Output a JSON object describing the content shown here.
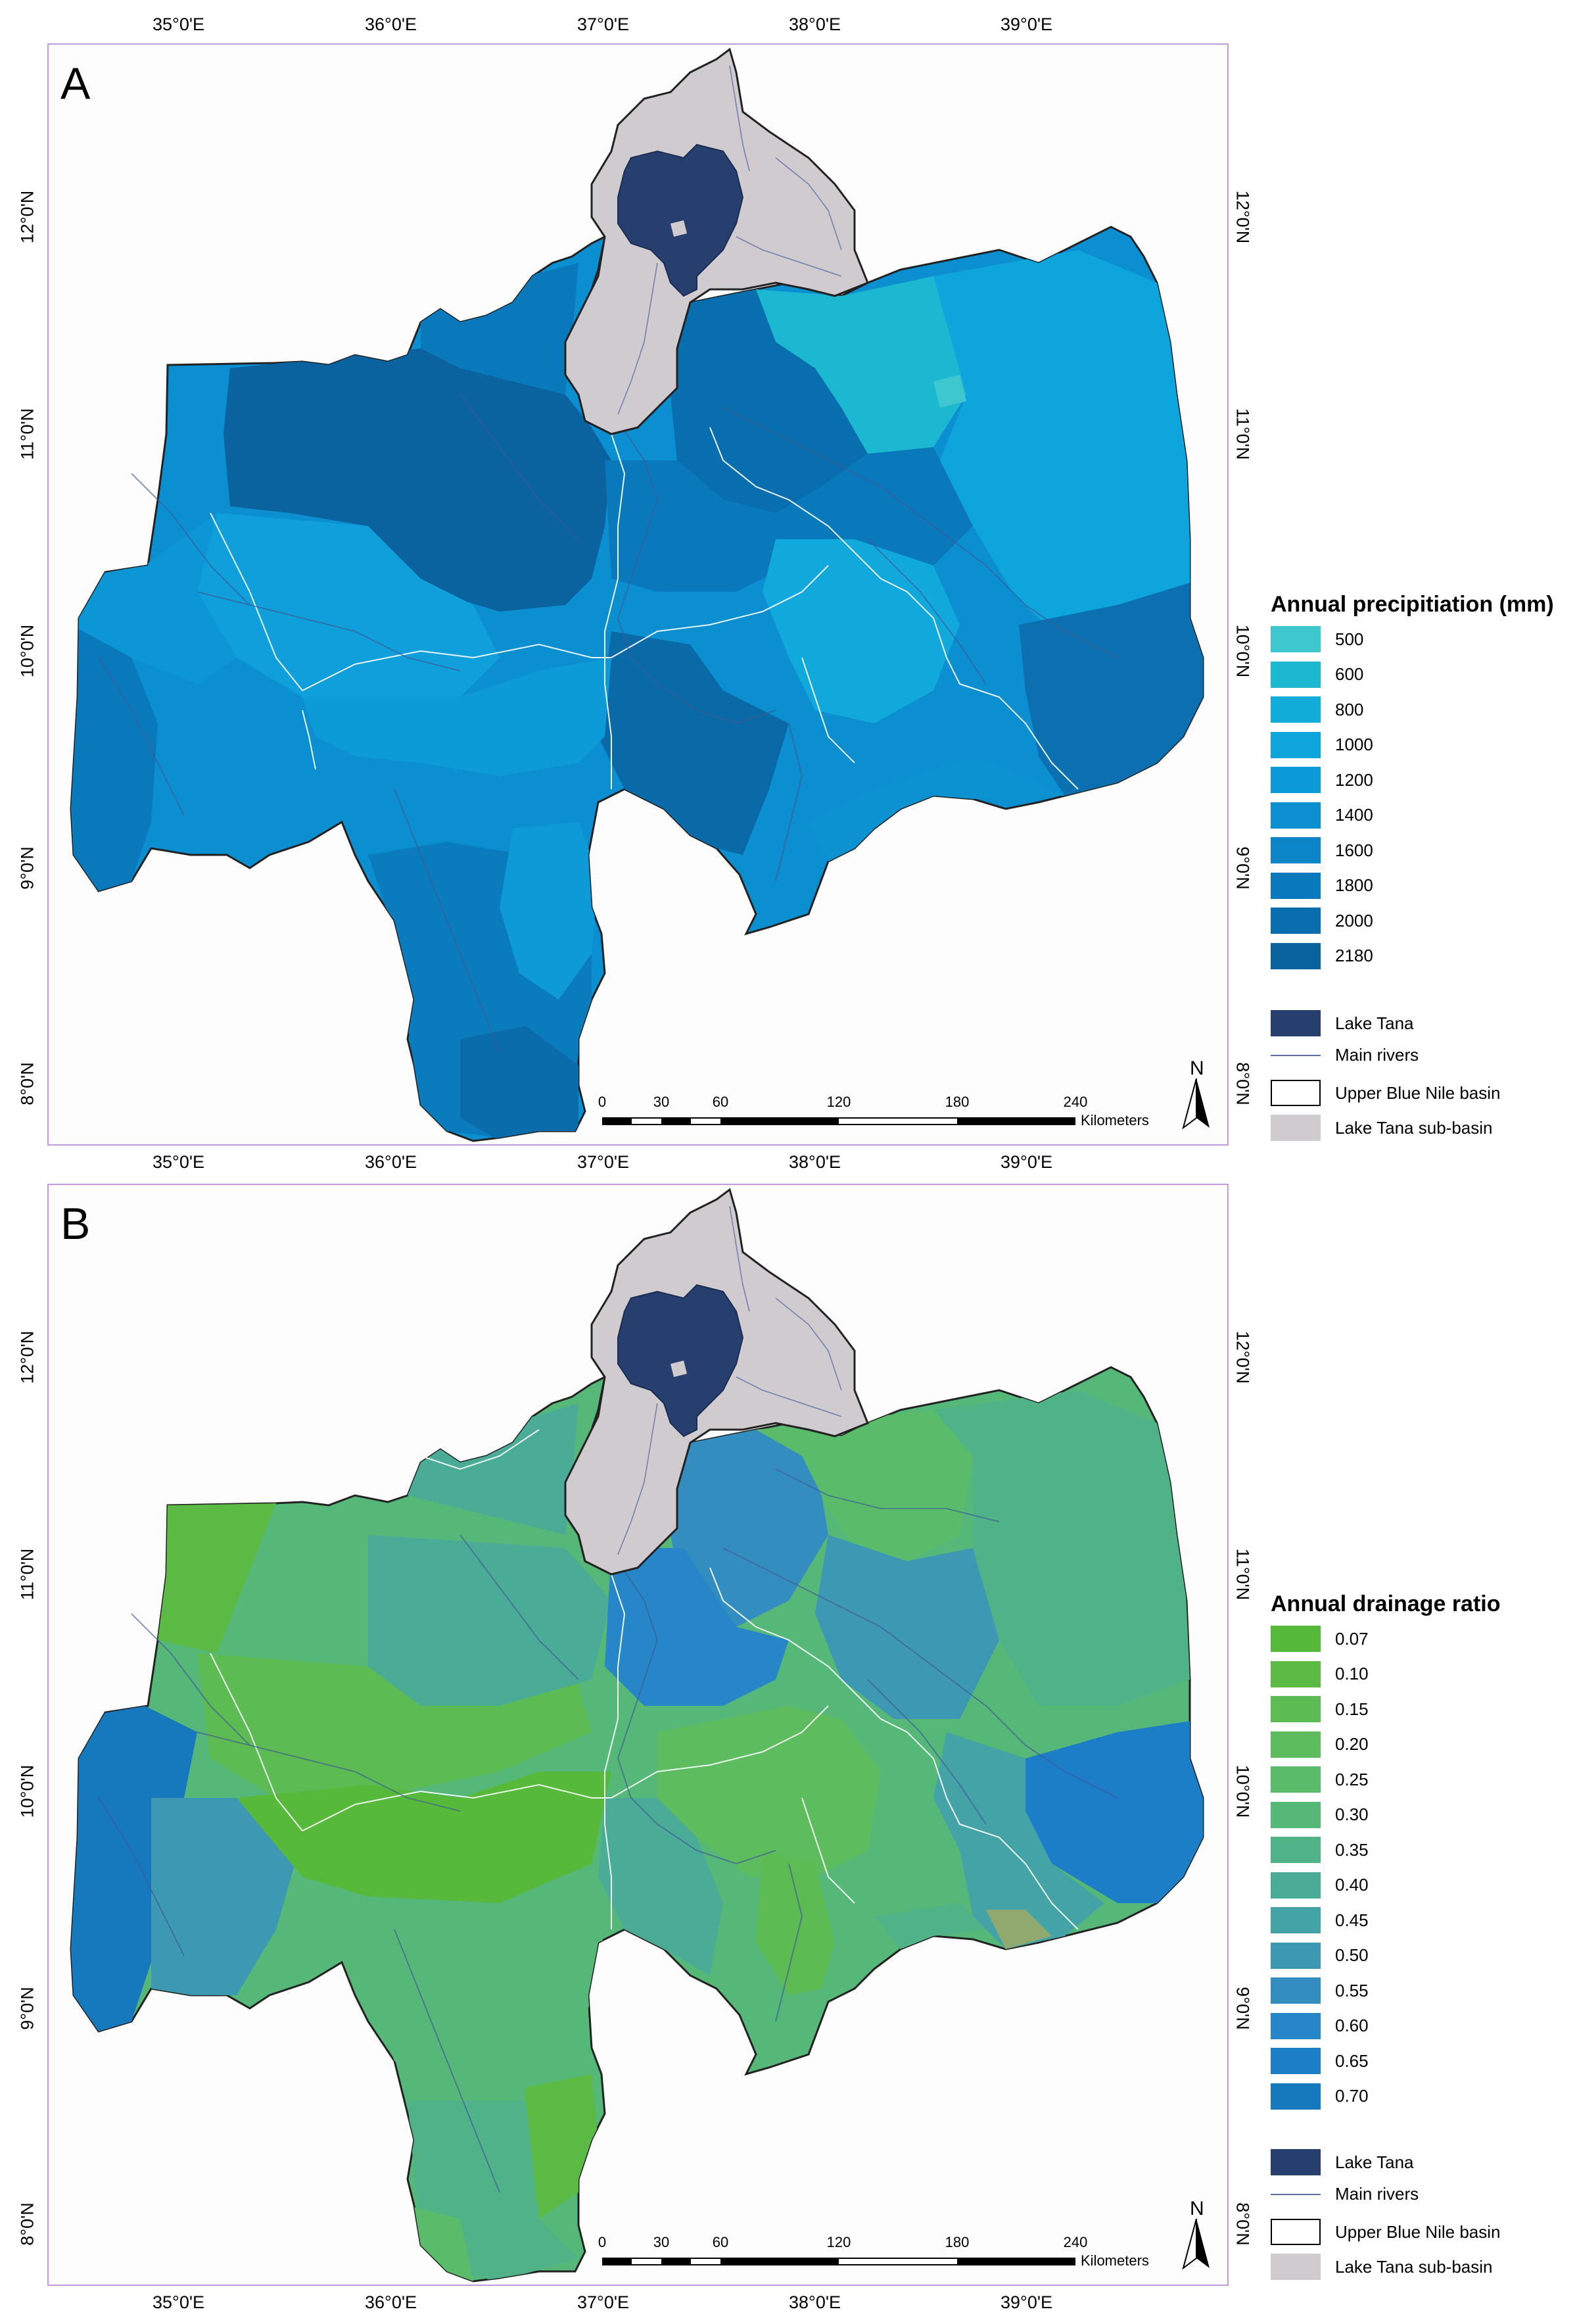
{
  "panels": [
    {
      "letter": "A",
      "legend": {
        "title": "Annual precipitiation (mm)",
        "items": [
          {
            "label": "500",
            "color": "#3ec7cf"
          },
          {
            "label": "600",
            "color": "#1cb8d2"
          },
          {
            "label": "800",
            "color": "#12acd9"
          },
          {
            "label": "1000",
            "color": "#0ea4dc"
          },
          {
            "label": "1200",
            "color": "#0c9ad8"
          },
          {
            "label": "1400",
            "color": "#0b8fd0"
          },
          {
            "label": "1600",
            "color": "#0b85c7"
          },
          {
            "label": "1800",
            "color": "#0a79bb"
          },
          {
            "label": "2000",
            "color": "#096eae"
          },
          {
            "label": "2180",
            "color": "#0a629f"
          }
        ]
      }
    },
    {
      "letter": "B",
      "legend": {
        "title": "Annual drainage ratio",
        "items": [
          {
            "label": "0.07",
            "color": "#57b93a"
          },
          {
            "label": "0.10",
            "color": "#5bba44"
          },
          {
            "label": "0.15",
            "color": "#5cbb52"
          },
          {
            "label": "0.20",
            "color": "#5dbc5e"
          },
          {
            "label": "0.25",
            "color": "#5abb6b"
          },
          {
            "label": "0.30",
            "color": "#55b878"
          },
          {
            "label": "0.35",
            "color": "#50b388"
          },
          {
            "label": "0.40",
            "color": "#4aac96"
          },
          {
            "label": "0.45",
            "color": "#44a3a6"
          },
          {
            "label": "0.50",
            "color": "#3d98b4"
          },
          {
            "label": "0.55",
            "color": "#338ebf"
          },
          {
            "label": "0.60",
            "color": "#2786c7"
          },
          {
            "label": "0.65",
            "color": "#1c7ec6"
          },
          {
            "label": "0.70",
            "color": "#1678bd"
          }
        ]
      }
    }
  ],
  "lon_labels": [
    "35°0'E",
    "36°0'E",
    "37°0'E",
    "38°0'E",
    "39°0'E"
  ],
  "lat_labels": [
    "12°0'N",
    "11°0'N",
    "10°0'N",
    "9°0'N",
    "8°0'N"
  ],
  "common_legend": [
    {
      "label": "Lake Tana",
      "kind": "lake"
    },
    {
      "label": "Main rivers",
      "kind": "river"
    },
    {
      "label": "Upper Blue Nile basin",
      "kind": "basin"
    },
    {
      "label": "Lake Tana sub-basin",
      "kind": "subbasin"
    }
  ],
  "scalebar": {
    "ticks": [
      "0",
      "30",
      "60",
      "120",
      "180",
      "240"
    ],
    "unit": "Kilometers"
  },
  "north_label": "N",
  "colors": {
    "lake": "#263f6e",
    "subbasin": "#d0cbce",
    "river": "#5a6fa8",
    "frame": "#c59ad8"
  }
}
